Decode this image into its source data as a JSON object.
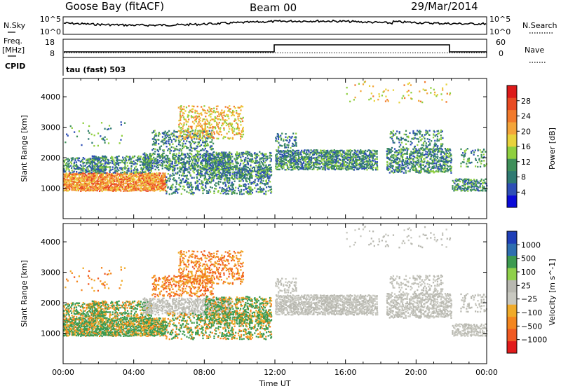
{
  "header": {
    "station": "Goose Bay (fitACF)",
    "beam": "Beam 00",
    "date": "29/Mar/2014"
  },
  "noise_panel": {
    "left_label": "N.Sky",
    "right_label": "N.Search",
    "left_ticks": [
      "10^5",
      "10^0"
    ],
    "right_ticks": [
      "10^5",
      "10^0"
    ]
  },
  "freq_panel": {
    "left_label_1": "Freq.",
    "left_label_2": "[MHz]",
    "right_label": "Nave",
    "left_ticks": [
      "18",
      "8"
    ],
    "right_ticks": [
      "60",
      "0"
    ],
    "cpid_label": "CPID",
    "cpid_value": "tau (fast) 503"
  },
  "colors": {
    "power": [
      "#0a0ad8",
      "#2e4fb6",
      "#2f7a72",
      "#3f8f5a",
      "#8fcf3f",
      "#e8d23c",
      "#f4a53a",
      "#f27a2c",
      "#e84a22",
      "#dd1a1a"
    ],
    "velocity": [
      "#e21b1b",
      "#f05a22",
      "#f4861f",
      "#f0ab2a",
      "#c8c8c0",
      "#b8b8b0",
      "#8fd04a",
      "#3c9a50",
      "#2e6fb0",
      "#1f3fb8"
    ]
  },
  "chart_data": [
    {
      "type": "heatmap",
      "name": "power",
      "ylabel": "Slant Range [km]",
      "ylim": [
        0,
        4600
      ],
      "yticks": [
        1000,
        2000,
        3000,
        4000
      ],
      "xlim": [
        0,
        24
      ],
      "colorbar_label": "Power [dB]",
      "colorbar_ticks": [
        "4",
        "8",
        "12",
        "16",
        "20",
        "24",
        "28"
      ]
    },
    {
      "type": "heatmap",
      "name": "velocity",
      "ylabel": "Slant Range [km]",
      "ylim": [
        0,
        4600
      ],
      "yticks": [
        1000,
        2000,
        3000,
        4000
      ],
      "xlim": [
        0,
        24
      ],
      "xticks": [
        "00:00",
        "04:00",
        "08:00",
        "12:00",
        "16:00",
        "20:00",
        "00:00"
      ],
      "xlabel": "Time UT",
      "colorbar_label": "Velocity [m s^-1]",
      "colorbar_ticks": [
        "1000",
        "500",
        "100",
        "25",
        "−25",
        "−100",
        "−500",
        "−1000"
      ]
    }
  ]
}
